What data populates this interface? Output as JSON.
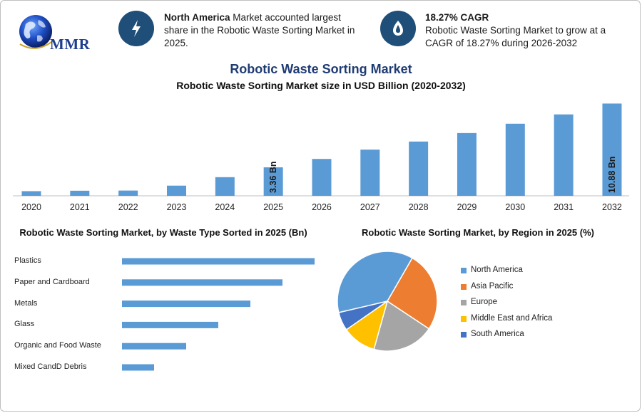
{
  "brand": {
    "logo_text": "MMR"
  },
  "highlights": [
    {
      "bold": "North America",
      "text": " Market accounted largest share in the Robotic Waste Sorting Market in 2025.",
      "icon": "lightning-icon"
    },
    {
      "bold": "18.27% CAGR",
      "text": "Robotic Waste Sorting Market to grow at a CAGR of 18.27% during 2026-2032",
      "icon": "growth-icon"
    }
  ],
  "colors": {
    "bar": "#5b9bd5",
    "navy": "#1f4e79",
    "title": "#1f3b73"
  },
  "chart_data": [
    {
      "type": "bar",
      "title": "Robotic Waste Sorting Market",
      "subtitle": "Robotic Waste Sorting Market size in USD Billion (2020-2032)",
      "categories": [
        "2020",
        "2021",
        "2022",
        "2023",
        "2024",
        "2025",
        "2026",
        "2027",
        "2028",
        "2029",
        "2030",
        "2031",
        "2032"
      ],
      "values": [
        0.55,
        0.6,
        0.62,
        1.2,
        2.2,
        3.36,
        4.35,
        5.45,
        6.4,
        7.4,
        8.5,
        9.6,
        10.88
      ],
      "data_labels": {
        "2025": "3.36 Bn",
        "2032": "10.88 Bn"
      },
      "ylim": [
        0,
        11
      ]
    },
    {
      "type": "bar",
      "orientation": "horizontal",
      "title": "Robotic Waste Sorting Market, by Waste Type Sorted in 2025 (Bn)",
      "categories": [
        "Plastics",
        "Paper and Cardboard",
        "Metals",
        "Glass",
        "Organic and Food Waste",
        "Mixed CandD Debris"
      ],
      "values": [
        1.2,
        1.0,
        0.8,
        0.6,
        0.4,
        0.2
      ]
    },
    {
      "type": "pie",
      "title": "Robotic Waste Sorting Market, by Region in 2025 (%)",
      "labels": [
        "North America",
        "Asia Pacific",
        "Europe",
        "Middle East and Africa",
        "South America"
      ],
      "values": [
        37,
        26,
        20,
        11,
        6
      ],
      "colors": [
        "#5b9bd5",
        "#ed7d31",
        "#a5a5a5",
        "#ffc000",
        "#4472c4"
      ]
    }
  ]
}
